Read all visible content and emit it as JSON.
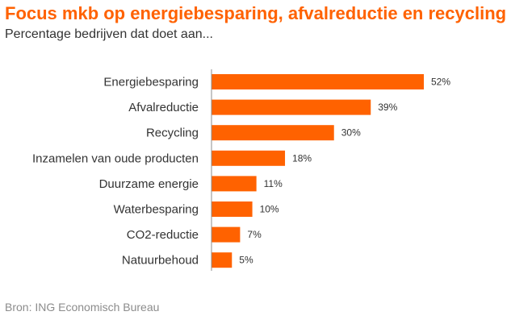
{
  "title": "Focus mkb op energiebesparing, afvalreductie en recycling",
  "subtitle": "Percentage bedrijven dat doet aan...",
  "source": "Bron: ING Economisch Bureau",
  "chart_data": {
    "type": "bar",
    "orientation": "horizontal",
    "title": "Focus mkb op energiebesparing, afvalreductie en recycling",
    "subtitle": "Percentage bedrijven dat doet aan...",
    "categories": [
      "Energiebesparing",
      "Afvalreductie",
      "Recycling",
      "Inzamelen van oude producten",
      "Duurzame energie",
      "Waterbesparing",
      "CO2-reductie",
      "Natuurbehoud"
    ],
    "values": [
      52,
      39,
      30,
      18,
      11,
      10,
      7,
      5
    ],
    "value_labels": [
      "52%",
      "39%",
      "30%",
      "18%",
      "11%",
      "10%",
      "7%",
      "5%"
    ],
    "xlim": [
      0,
      52
    ],
    "grid": false,
    "legend": "none",
    "bar_color": "#ff6200"
  }
}
